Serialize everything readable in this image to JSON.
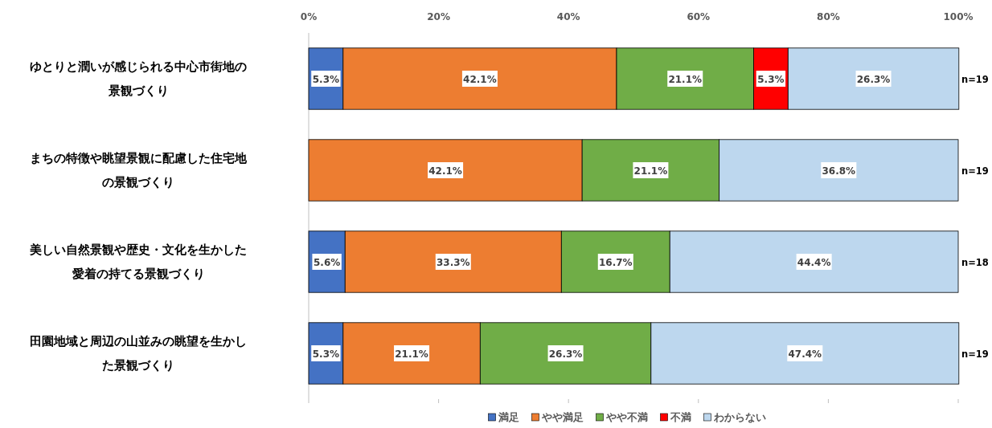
{
  "chart_data": {
    "type": "bar",
    "orientation": "horizontal",
    "stacked": true,
    "categories": [
      "ゆとりと潤いが感じられる中心市街地の景観づくり",
      "まちの特徴や眺望景観に配慮した住宅地の景観づくり",
      "美しい自然景観や歴史・文化を生かした愛着の持てる景観づくり",
      "田園地域と周辺の山並みの眺望を生かした景観づくり"
    ],
    "series": [
      {
        "name": "満足",
        "color": "#4472c4",
        "values": [
          5.3,
          null,
          5.6,
          5.3
        ],
        "value_labels": [
          "5.3%",
          null,
          "5.6%",
          "5.3%"
        ]
      },
      {
        "name": "やや満足",
        "color": "#ed7d31",
        "values": [
          42.1,
          42.1,
          33.3,
          21.1
        ],
        "value_labels": [
          "42.1%",
          "42.1%",
          "33.3%",
          "21.1%"
        ]
      },
      {
        "name": "やや不満",
        "color": "#70ad47",
        "values": [
          21.1,
          21.1,
          16.7,
          26.3
        ],
        "value_labels": [
          "21.1%",
          "21.1%",
          "16.7%",
          "26.3%"
        ]
      },
      {
        "name": "不満",
        "color": "#ff0000",
        "values": [
          5.3,
          null,
          null,
          null
        ],
        "value_labels": [
          "5.3%",
          null,
          null,
          null
        ]
      },
      {
        "name": "わからない",
        "color": "#bdd7ee",
        "values": [
          26.3,
          36.8,
          44.4,
          47.4
        ],
        "value_labels": [
          "26.3%",
          "36.8%",
          "44.4%",
          "47.4%"
        ]
      }
    ],
    "xlim": [
      0,
      100
    ],
    "xticks": [
      {
        "value": 0,
        "label": "0%"
      },
      {
        "value": 20,
        "label": "20%"
      },
      {
        "value": 40,
        "label": "40%"
      },
      {
        "value": 60,
        "label": "60%"
      },
      {
        "value": 80,
        "label": "80%"
      },
      {
        "value": 100,
        "label": "100%"
      }
    ],
    "annotations": [
      "n=19",
      "n=19",
      "n=18",
      "n=19"
    ],
    "legend": "bottom",
    "grid": false
  }
}
